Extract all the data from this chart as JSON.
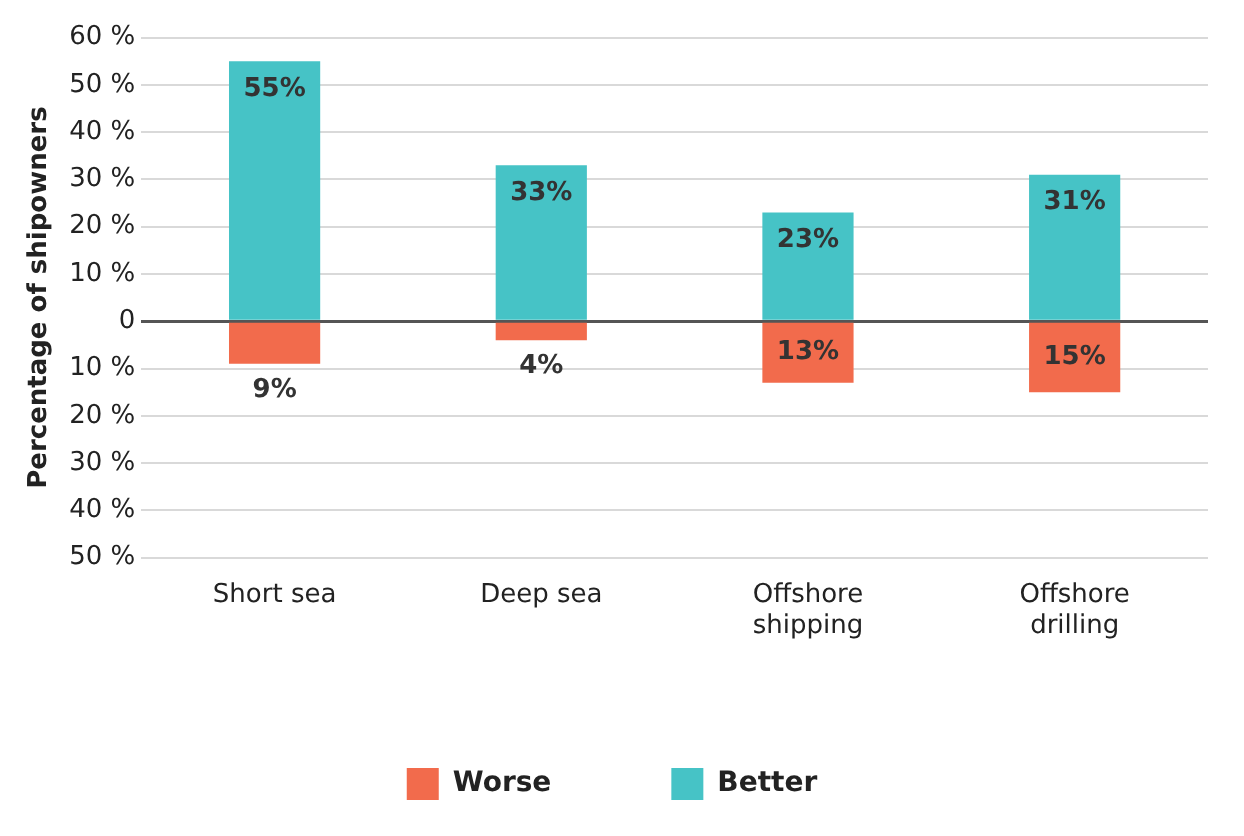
{
  "chart_data": {
    "type": "bar",
    "ylabel": "Percentage of shipowners",
    "categories": [
      "Short sea",
      "Deep sea",
      "Offshore shipping",
      "Offshore drilling"
    ],
    "series": [
      {
        "name": "Worse",
        "color": "#f26b4c",
        "base": [
          -9,
          -4,
          -13,
          -15
        ],
        "values": [
          9,
          4,
          13,
          15
        ],
        "value_labels": [
          "9%",
          "4%",
          "13%",
          "15%"
        ]
      },
      {
        "name": "Better",
        "color": "#46c3c6",
        "values": [
          55,
          33,
          23,
          31
        ],
        "value_labels": [
          "55%",
          "33%",
          "23%",
          "31%"
        ]
      }
    ],
    "ylim": [
      -50,
      60
    ],
    "yticks": [
      {
        "value": 60,
        "label": "60 %"
      },
      {
        "value": 50,
        "label": "50 %"
      },
      {
        "value": 40,
        "label": "40 %"
      },
      {
        "value": 30,
        "label": "30 %"
      },
      {
        "value": 20,
        "label": "20 %"
      },
      {
        "value": 10,
        "label": "10 %"
      },
      0,
      {
        "value": -10,
        "label": "10 %"
      },
      {
        "value": -20,
        "label": "20 %"
      },
      {
        "value": -30,
        "label": "30 %"
      },
      {
        "value": -40,
        "label": "40 %"
      },
      {
        "value": -50,
        "label": "50 %"
      }
    ],
    "grid": "y",
    "legend": "bottom"
  }
}
